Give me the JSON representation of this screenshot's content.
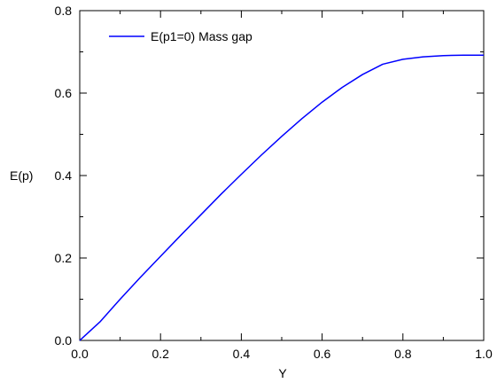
{
  "chart_data": {
    "type": "line",
    "title": "",
    "xlabel": "Y",
    "ylabel": "E(p)",
    "xlim": [
      0.0,
      1.0
    ],
    "ylim": [
      0.0,
      0.8
    ],
    "x_ticks": [
      0.0,
      0.2,
      0.4,
      0.6,
      0.8,
      1.0
    ],
    "x_tick_labels": [
      "0.0",
      "0.2",
      "0.4",
      "0.6",
      "0.8",
      "1.0"
    ],
    "y_ticks": [
      0.0,
      0.2,
      0.4,
      0.6,
      0.8
    ],
    "y_tick_labels": [
      "0.0",
      "0.2",
      "0.4",
      "0.6",
      "0.8"
    ],
    "grid": false,
    "legend_position": "top-left",
    "series": [
      {
        "name": "E(p1=0)  Mass gap",
        "color": "#0000ff",
        "x": [
          0.0,
          0.05,
          0.1,
          0.15,
          0.2,
          0.25,
          0.3,
          0.35,
          0.4,
          0.45,
          0.5,
          0.55,
          0.6,
          0.65,
          0.7,
          0.75,
          0.8,
          0.85,
          0.9,
          0.95,
          1.0
        ],
        "y": [
          0.0,
          0.045,
          0.1,
          0.153,
          0.204,
          0.255,
          0.305,
          0.355,
          0.403,
          0.45,
          0.495,
          0.538,
          0.578,
          0.614,
          0.645,
          0.67,
          0.682,
          0.688,
          0.691,
          0.692,
          0.692
        ]
      }
    ]
  }
}
